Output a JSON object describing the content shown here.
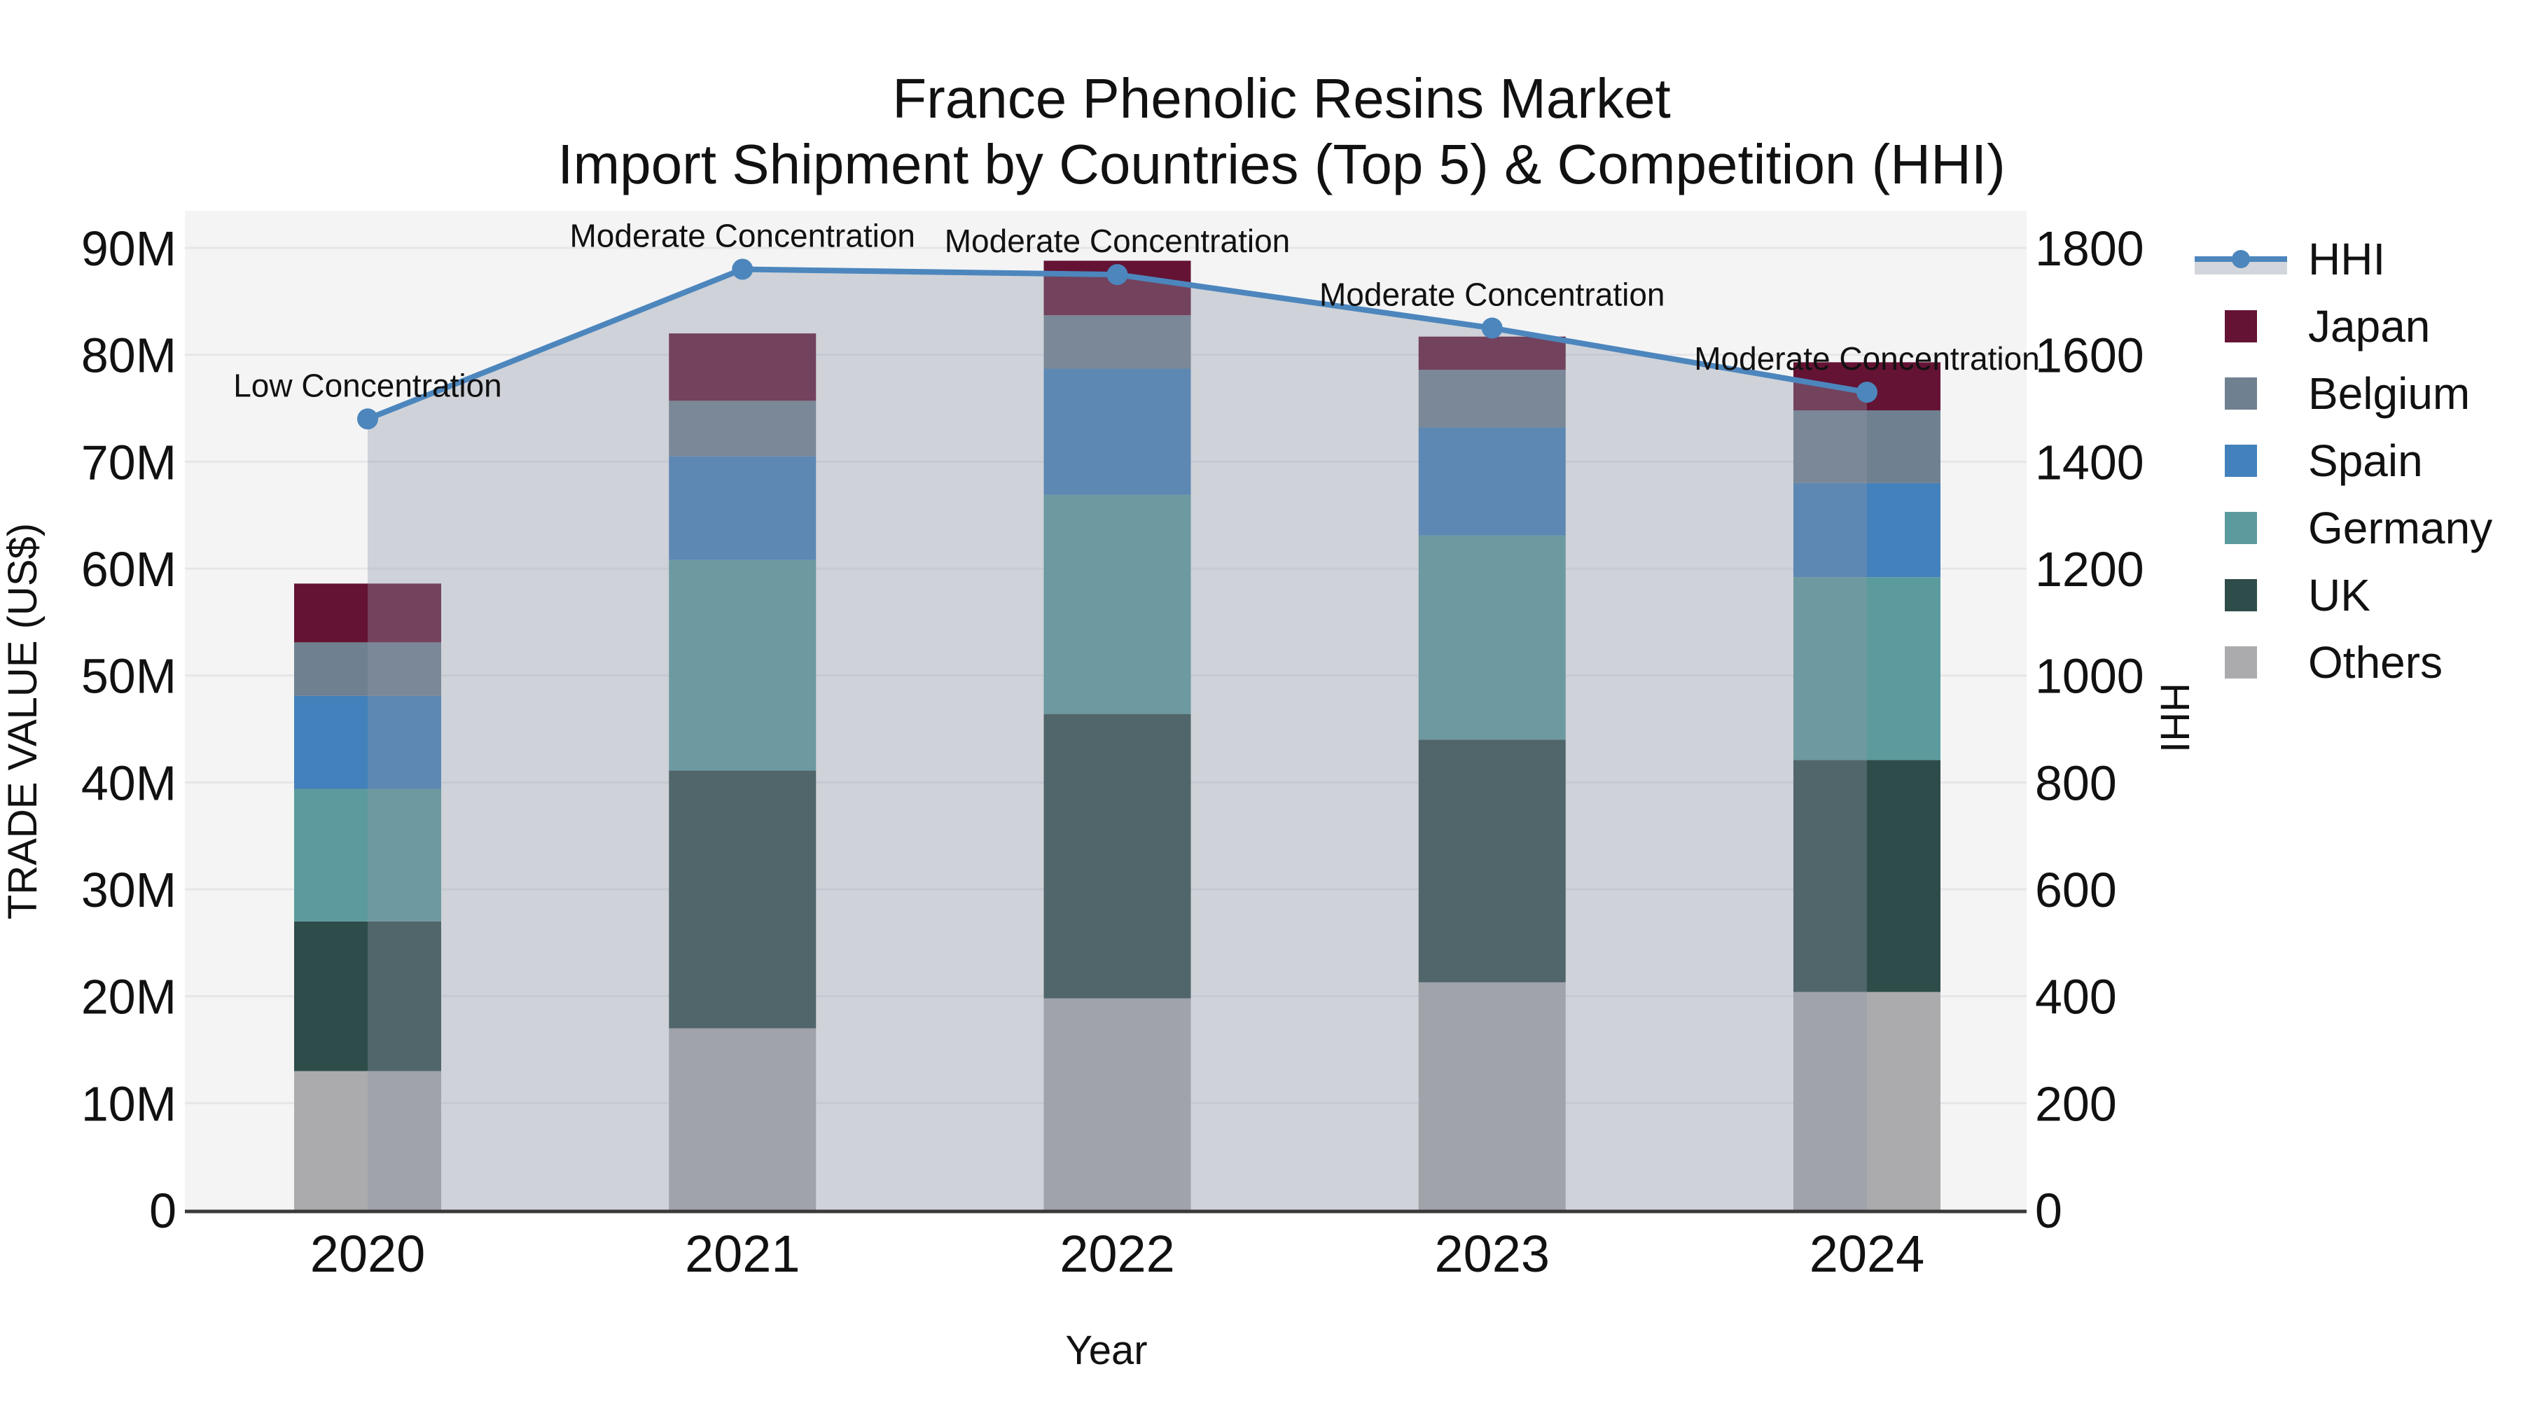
{
  "title": {
    "line1": "France Phenolic Resins Market",
    "line2": "Import Shipment by Countries (Top 5) & Competition (HHI)"
  },
  "axes": {
    "x_label": "Year",
    "y_left_label": "TRADE VALUE (US$)",
    "y_right_label": "HHI",
    "y_left_tick_labels": [
      "0",
      "10M",
      "20M",
      "30M",
      "40M",
      "50M",
      "60M",
      "70M",
      "80M",
      "90M"
    ],
    "y_right_tick_labels": [
      "0",
      "200",
      "400",
      "600",
      "800",
      "1000",
      "1200",
      "1400",
      "1600",
      "1800"
    ]
  },
  "legend": {
    "items": [
      {
        "label": "HHI",
        "type": "line",
        "color": "#4c86bd"
      },
      {
        "label": "Japan",
        "type": "patch",
        "color": "#641334"
      },
      {
        "label": "Belgium",
        "type": "patch",
        "color": "#6f8090"
      },
      {
        "label": "Spain",
        "type": "patch",
        "color": "#4281bb"
      },
      {
        "label": "Germany",
        "type": "patch",
        "color": "#5c9b9d"
      },
      {
        "label": "UK",
        "type": "patch",
        "color": "#2e4c49"
      },
      {
        "label": "Others",
        "type": "patch",
        "color": "#ababad"
      }
    ]
  },
  "chart_data": {
    "type": "combo: stacked-bar + line",
    "categories": [
      "2020",
      "2021",
      "2022",
      "2023",
      "2024"
    ],
    "unit_left": "US$ millions",
    "stack_series_bottom_to_top": [
      {
        "name": "Others",
        "color": "#ababad",
        "values": [
          13.0,
          17.0,
          19.8,
          21.3,
          20.4
        ]
      },
      {
        "name": "UK",
        "color": "#2e4c49",
        "values": [
          14.0,
          24.1,
          26.6,
          22.7,
          21.7
        ]
      },
      {
        "name": "Germany",
        "color": "#5c9b9d",
        "values": [
          12.4,
          19.7,
          20.5,
          19.1,
          17.1
        ]
      },
      {
        "name": "Spain",
        "color": "#4281bb",
        "values": [
          8.7,
          9.7,
          11.8,
          10.1,
          8.8
        ]
      },
      {
        "name": "Belgium",
        "color": "#6f8090",
        "values": [
          5.0,
          5.2,
          5.0,
          5.4,
          6.8
        ]
      },
      {
        "name": "Japan",
        "color": "#641334",
        "values": [
          5.5,
          6.3,
          5.1,
          3.1,
          4.5
        ]
      }
    ],
    "bar_totals": [
      58.6,
      82.0,
      88.8,
      81.7,
      79.3
    ],
    "line_series": {
      "name": "HHI",
      "color": "#4c86bd",
      "values": [
        1480,
        1760,
        1750,
        1650,
        1530
      ]
    },
    "annotations": [
      "Low Concentration",
      "Moderate Concentration",
      "Moderate Concentration",
      "Moderate Concentration",
      "Moderate Concentration"
    ],
    "y_left": {
      "min": 0,
      "max": 90,
      "tick_step": 10,
      "suffix": "M"
    },
    "y_right": {
      "min": 0,
      "max": 1800,
      "tick_step": 200
    },
    "area_fill": {
      "color": "#8c96a6",
      "alpha": 0.36
    },
    "plot_bg": "#f4f4f5",
    "grid_color": "#e6e6e9",
    "spine_color": "#3a3a3a",
    "text_color": "#111111"
  }
}
